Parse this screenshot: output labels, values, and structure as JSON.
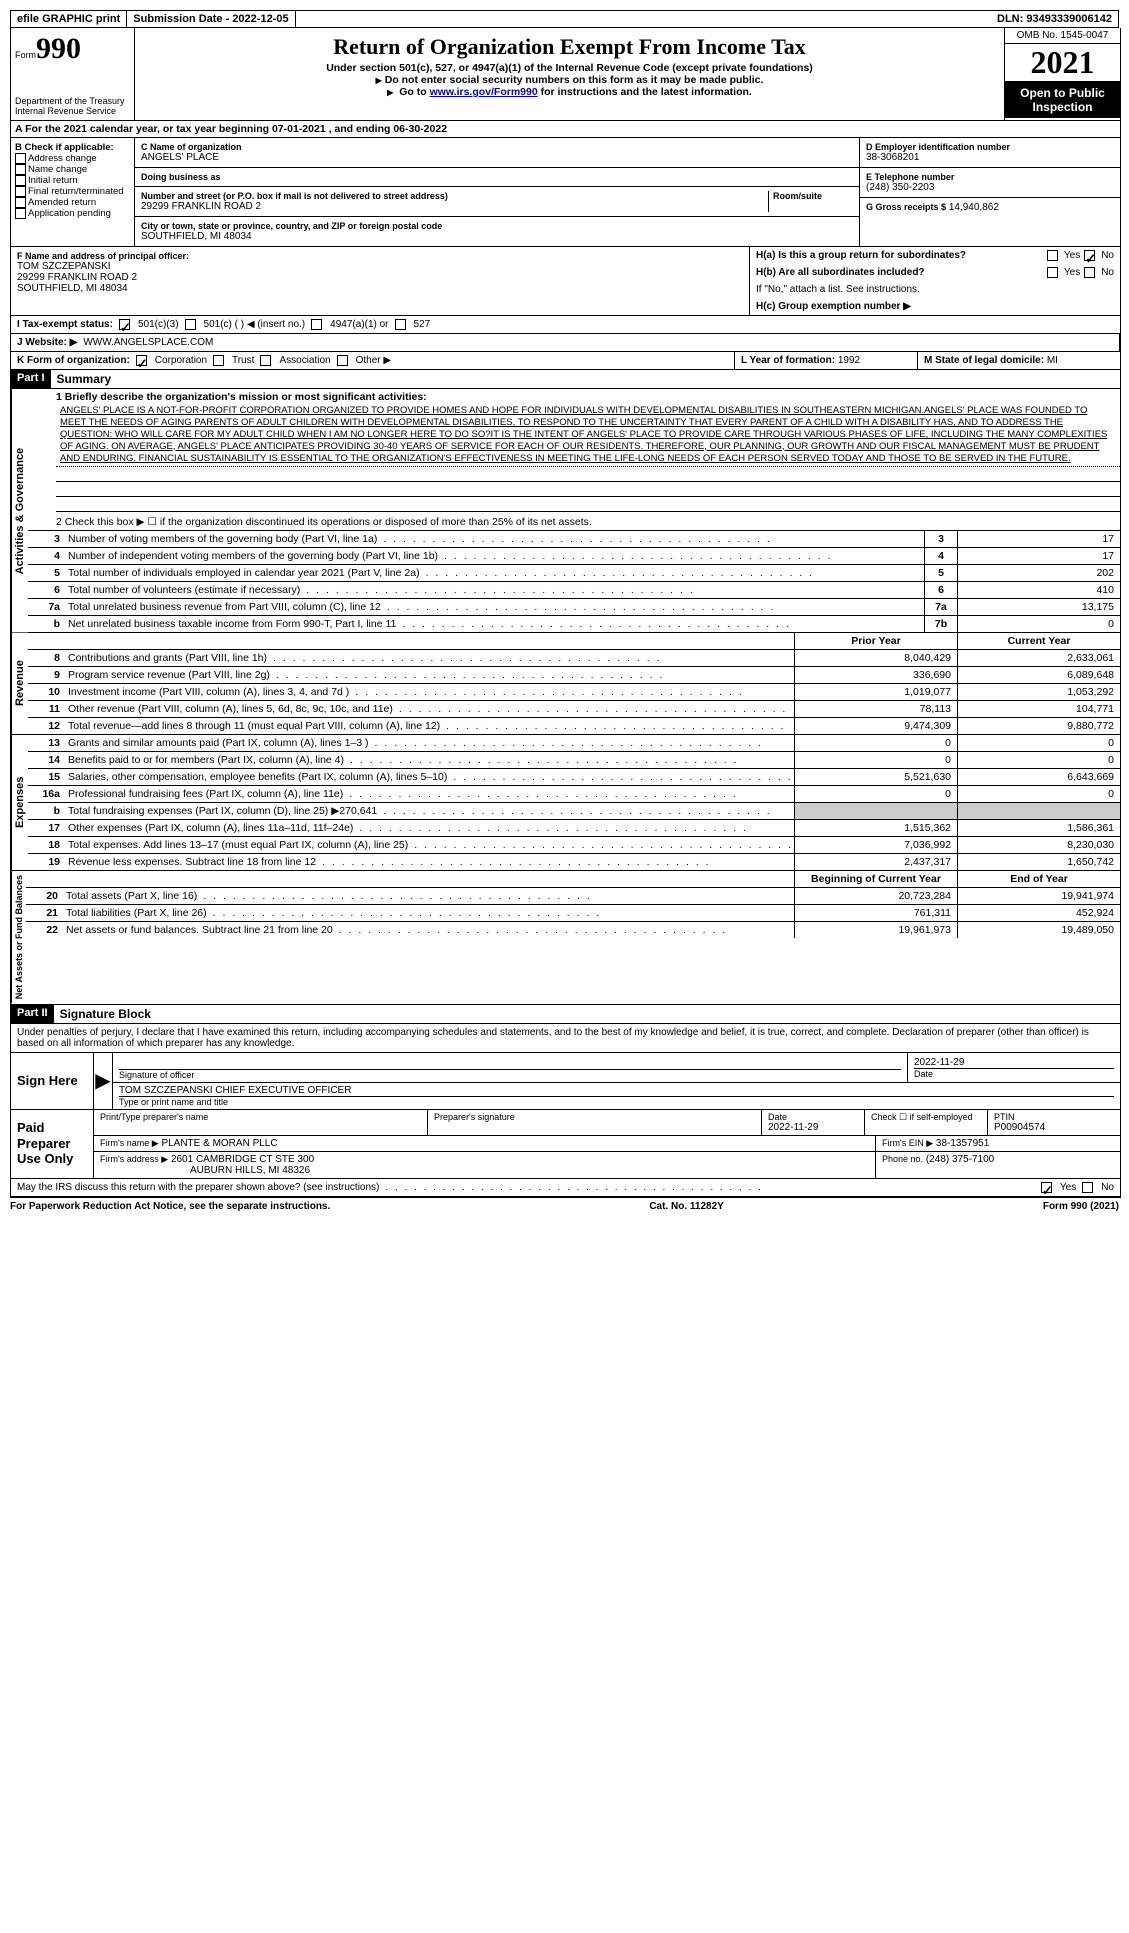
{
  "top": {
    "efile": "efile GRAPHIC print",
    "submission": "Submission Date - 2022-12-05",
    "dln": "DLN: 93493339006142"
  },
  "header": {
    "form_small": "Form",
    "form_big": "990",
    "title": "Return of Organization Exempt From Income Tax",
    "sub1": "Under section 501(c), 527, or 4947(a)(1) of the Internal Revenue Code (except private foundations)",
    "sub2": "Do not enter social security numbers on this form as it may be made public.",
    "sub3_pre": "Go to ",
    "sub3_link": "www.irs.gov/Form990",
    "sub3_post": " for instructions and the latest information.",
    "omb": "OMB No. 1545-0047",
    "year": "2021",
    "open": "Open to Public Inspection",
    "dept": "Department of the Treasury Internal Revenue Service"
  },
  "lineA": "A For the 2021 calendar year, or tax year beginning 07-01-2021   , and ending 06-30-2022",
  "sectionB": {
    "title": "B Check if applicable:",
    "items": [
      "Address change",
      "Name change",
      "Initial return",
      "Final return/terminated",
      "Amended return",
      "Application pending"
    ]
  },
  "sectionC": {
    "name_label": "C Name of organization",
    "name": "ANGELS' PLACE",
    "dba_label": "Doing business as",
    "street_label": "Number and street (or P.O. box if mail is not delivered to street address)",
    "room_label": "Room/suite",
    "street": "29299 FRANKLIN ROAD 2",
    "city_label": "City or town, state or province, country, and ZIP or foreign postal code",
    "city": "SOUTHFIELD, MI  48034"
  },
  "sectionD": {
    "label": "D Employer identification number",
    "value": "38-3068201"
  },
  "sectionE": {
    "label": "E Telephone number",
    "value": "(248) 350-2203"
  },
  "sectionG": {
    "label": "G Gross receipts $",
    "value": "14,940,862"
  },
  "sectionF": {
    "label": "F Name and address of principal officer:",
    "name": "TOM SZCZEPANSKI",
    "street": "29299 FRANKLIN ROAD 2",
    "city": "SOUTHFIELD, MI  48034"
  },
  "sectionH": {
    "a": "H(a)  Is this a group return for subordinates?",
    "b": "H(b)  Are all subordinates included?",
    "note": "If \"No,\" attach a list. See instructions.",
    "c": "H(c)  Group exemption number ▶",
    "yes": "Yes",
    "no": "No"
  },
  "sectionI": {
    "label": "I   Tax-exempt status:",
    "opts": [
      "501(c)(3)",
      "501(c) (  ) ◀ (insert no.)",
      "4947(a)(1) or",
      "527"
    ]
  },
  "sectionJ": {
    "label": "J  Website: ▶",
    "value": "WWW.ANGELSPLACE.COM"
  },
  "sectionK": {
    "label": "K Form of organization:",
    "opts": [
      "Corporation",
      "Trust",
      "Association",
      "Other ▶"
    ]
  },
  "sectionL": {
    "label": "L Year of formation:",
    "value": "1992"
  },
  "sectionM": {
    "label": "M State of legal domicile:",
    "value": "MI"
  },
  "part1": {
    "hdr": "Part I",
    "title": "Summary"
  },
  "mission_label": "1   Briefly describe the organization's mission or most significant activities:",
  "mission": "ANGELS' PLACE IS A NOT-FOR-PROFIT CORPORATION ORGANIZED TO PROVIDE HOMES AND HOPE FOR INDIVIDUALS WITH DEVELOPMENTAL DISABILITIES IN SOUTHEASTERN MICHIGAN.ANGELS' PLACE WAS FOUNDED TO MEET THE NEEDS OF AGING PARENTS OF ADULT CHILDREN WITH DEVELOPMENTAL DISABILITIES, TO RESPOND TO THE UNCERTAINTY THAT EVERY PARENT OF A CHILD WITH A DISABILITY HAS, AND TO ADDRESS THE QUESTION: WHO WILL CARE FOR MY ADULT CHILD WHEN I AM NO LONGER HERE TO DO SO?IT IS THE INTENT OF ANGELS' PLACE TO PROVIDE CARE THROUGH VARIOUS PHASES OF LIFE, INCLUDING THE MANY COMPLEXITIES OF AGING. ON AVERAGE, ANGELS' PLACE ANTICIPATES PROVIDING 30-40 YEARS OF SERVICE FOR EACH OF OUR RESIDENTS. THEREFORE, OUR PLANNING, OUR GROWTH AND OUR FISCAL MANAGEMENT MUST BE PRUDENT AND ENDURING. FINANCIAL SUSTAINABILITY IS ESSENTIAL TO THE ORGANIZATION'S EFFECTIVENESS IN MEETING THE LIFE-LONG NEEDS OF EACH PERSON SERVED TODAY AND THOSE TO BE SERVED IN THE FUTURE.",
  "line2": "2   Check this box ▶ ☐ if the organization discontinued its operations or disposed of more than 25% of its net assets.",
  "governance": {
    "side": "Activities & Governance",
    "rows": [
      {
        "n": "3",
        "d": "Number of voting members of the governing body (Part VI, line 1a)",
        "b": "3",
        "v": "17"
      },
      {
        "n": "4",
        "d": "Number of independent voting members of the governing body (Part VI, line 1b)",
        "b": "4",
        "v": "17"
      },
      {
        "n": "5",
        "d": "Total number of individuals employed in calendar year 2021 (Part V, line 2a)",
        "b": "5",
        "v": "202"
      },
      {
        "n": "6",
        "d": "Total number of volunteers (estimate if necessary)",
        "b": "6",
        "v": "410"
      },
      {
        "n": "7a",
        "d": "Total unrelated business revenue from Part VIII, column (C), line 12",
        "b": "7a",
        "v": "13,175"
      },
      {
        "n": "b",
        "d": "Net unrelated business taxable income from Form 990-T, Part I, line 11",
        "b": "7b",
        "v": "0"
      }
    ]
  },
  "col_hdrs": {
    "prior": "Prior Year",
    "current": "Current Year",
    "boy": "Beginning of Current Year",
    "eoy": "End of Year"
  },
  "revenue": {
    "side": "Revenue",
    "rows": [
      {
        "n": "8",
        "d": "Contributions and grants (Part VIII, line 1h)",
        "p": "8,040,429",
        "c": "2,633,061"
      },
      {
        "n": "9",
        "d": "Program service revenue (Part VIII, line 2g)",
        "p": "336,690",
        "c": "6,089,648"
      },
      {
        "n": "10",
        "d": "Investment income (Part VIII, column (A), lines 3, 4, and 7d )",
        "p": "1,019,077",
        "c": "1,053,292"
      },
      {
        "n": "11",
        "d": "Other revenue (Part VIII, column (A), lines 5, 6d, 8c, 9c, 10c, and 11e)",
        "p": "78,113",
        "c": "104,771"
      },
      {
        "n": "12",
        "d": "Total revenue—add lines 8 through 11 (must equal Part VIII, column (A), line 12)",
        "p": "9,474,309",
        "c": "9,880,772"
      }
    ]
  },
  "expenses": {
    "side": "Expenses",
    "rows": [
      {
        "n": "13",
        "d": "Grants and similar amounts paid (Part IX, column (A), lines 1–3 )",
        "p": "0",
        "c": "0"
      },
      {
        "n": "14",
        "d": "Benefits paid to or for members (Part IX, column (A), line 4)",
        "p": "0",
        "c": "0"
      },
      {
        "n": "15",
        "d": "Salaries, other compensation, employee benefits (Part IX, column (A), lines 5–10)",
        "p": "5,521,630",
        "c": "6,643,669"
      },
      {
        "n": "16a",
        "d": "Professional fundraising fees (Part IX, column (A), line 11e)",
        "p": "0",
        "c": "0"
      },
      {
        "n": "b",
        "d": "Total fundraising expenses (Part IX, column (D), line 25) ▶270,641",
        "p": "",
        "c": "",
        "shade": true
      },
      {
        "n": "17",
        "d": "Other expenses (Part IX, column (A), lines 11a–11d, 11f–24e)",
        "p": "1,515,362",
        "c": "1,586,361"
      },
      {
        "n": "18",
        "d": "Total expenses. Add lines 13–17 (must equal Part IX, column (A), line 25)",
        "p": "7,036,992",
        "c": "8,230,030"
      },
      {
        "n": "19",
        "d": "Revenue less expenses. Subtract line 18 from line 12",
        "p": "2,437,317",
        "c": "1,650,742"
      }
    ]
  },
  "netassets": {
    "side": "Net Assets or Fund Balances",
    "rows": [
      {
        "n": "20",
        "d": "Total assets (Part X, line 16)",
        "p": "20,723,284",
        "c": "19,941,974"
      },
      {
        "n": "21",
        "d": "Total liabilities (Part X, line 26)",
        "p": "761,311",
        "c": "452,924"
      },
      {
        "n": "22",
        "d": "Net assets or fund balances. Subtract line 21 from line 20",
        "p": "19,961,973",
        "c": "19,489,050"
      }
    ]
  },
  "part2": {
    "hdr": "Part II",
    "title": "Signature Block"
  },
  "penalties": "Under penalties of perjury, I declare that I have examined this return, including accompanying schedules and statements, and to the best of my knowledge and belief, it is true, correct, and complete. Declaration of preparer (other than officer) is based on all information of which preparer has any knowledge.",
  "sign": {
    "label": "Sign Here",
    "sig_of_officer": "Signature of officer",
    "date": "Date",
    "date_val": "2022-11-29",
    "name": "TOM SZCZEPANSKI  CHIEF EXECUTIVE OFFICER",
    "type_label": "Type or print name and title"
  },
  "preparer": {
    "label": "Paid Preparer Use Only",
    "print_label": "Print/Type preparer's name",
    "sig_label": "Preparer's signature",
    "date_label": "Date",
    "date": "2022-11-29",
    "check_label": "Check ☐ if self-employed",
    "ptin_label": "PTIN",
    "ptin": "P00904574",
    "firm_name_label": "Firm's name    ▶",
    "firm_name": "PLANTE & MORAN PLLC",
    "firm_ein_label": "Firm's EIN ▶",
    "firm_ein": "38-1357951",
    "firm_addr_label": "Firm's address ▶",
    "firm_addr1": "2601 CAMBRIDGE CT STE 300",
    "firm_addr2": "AUBURN HILLS, MI  48326",
    "phone_label": "Phone no.",
    "phone": "(248) 375-7100"
  },
  "discuss": "May the IRS discuss this return with the preparer shown above? (see instructions)",
  "footer": {
    "left": "For Paperwork Reduction Act Notice, see the separate instructions.",
    "mid": "Cat. No. 11282Y",
    "right": "Form 990 (2021)"
  }
}
